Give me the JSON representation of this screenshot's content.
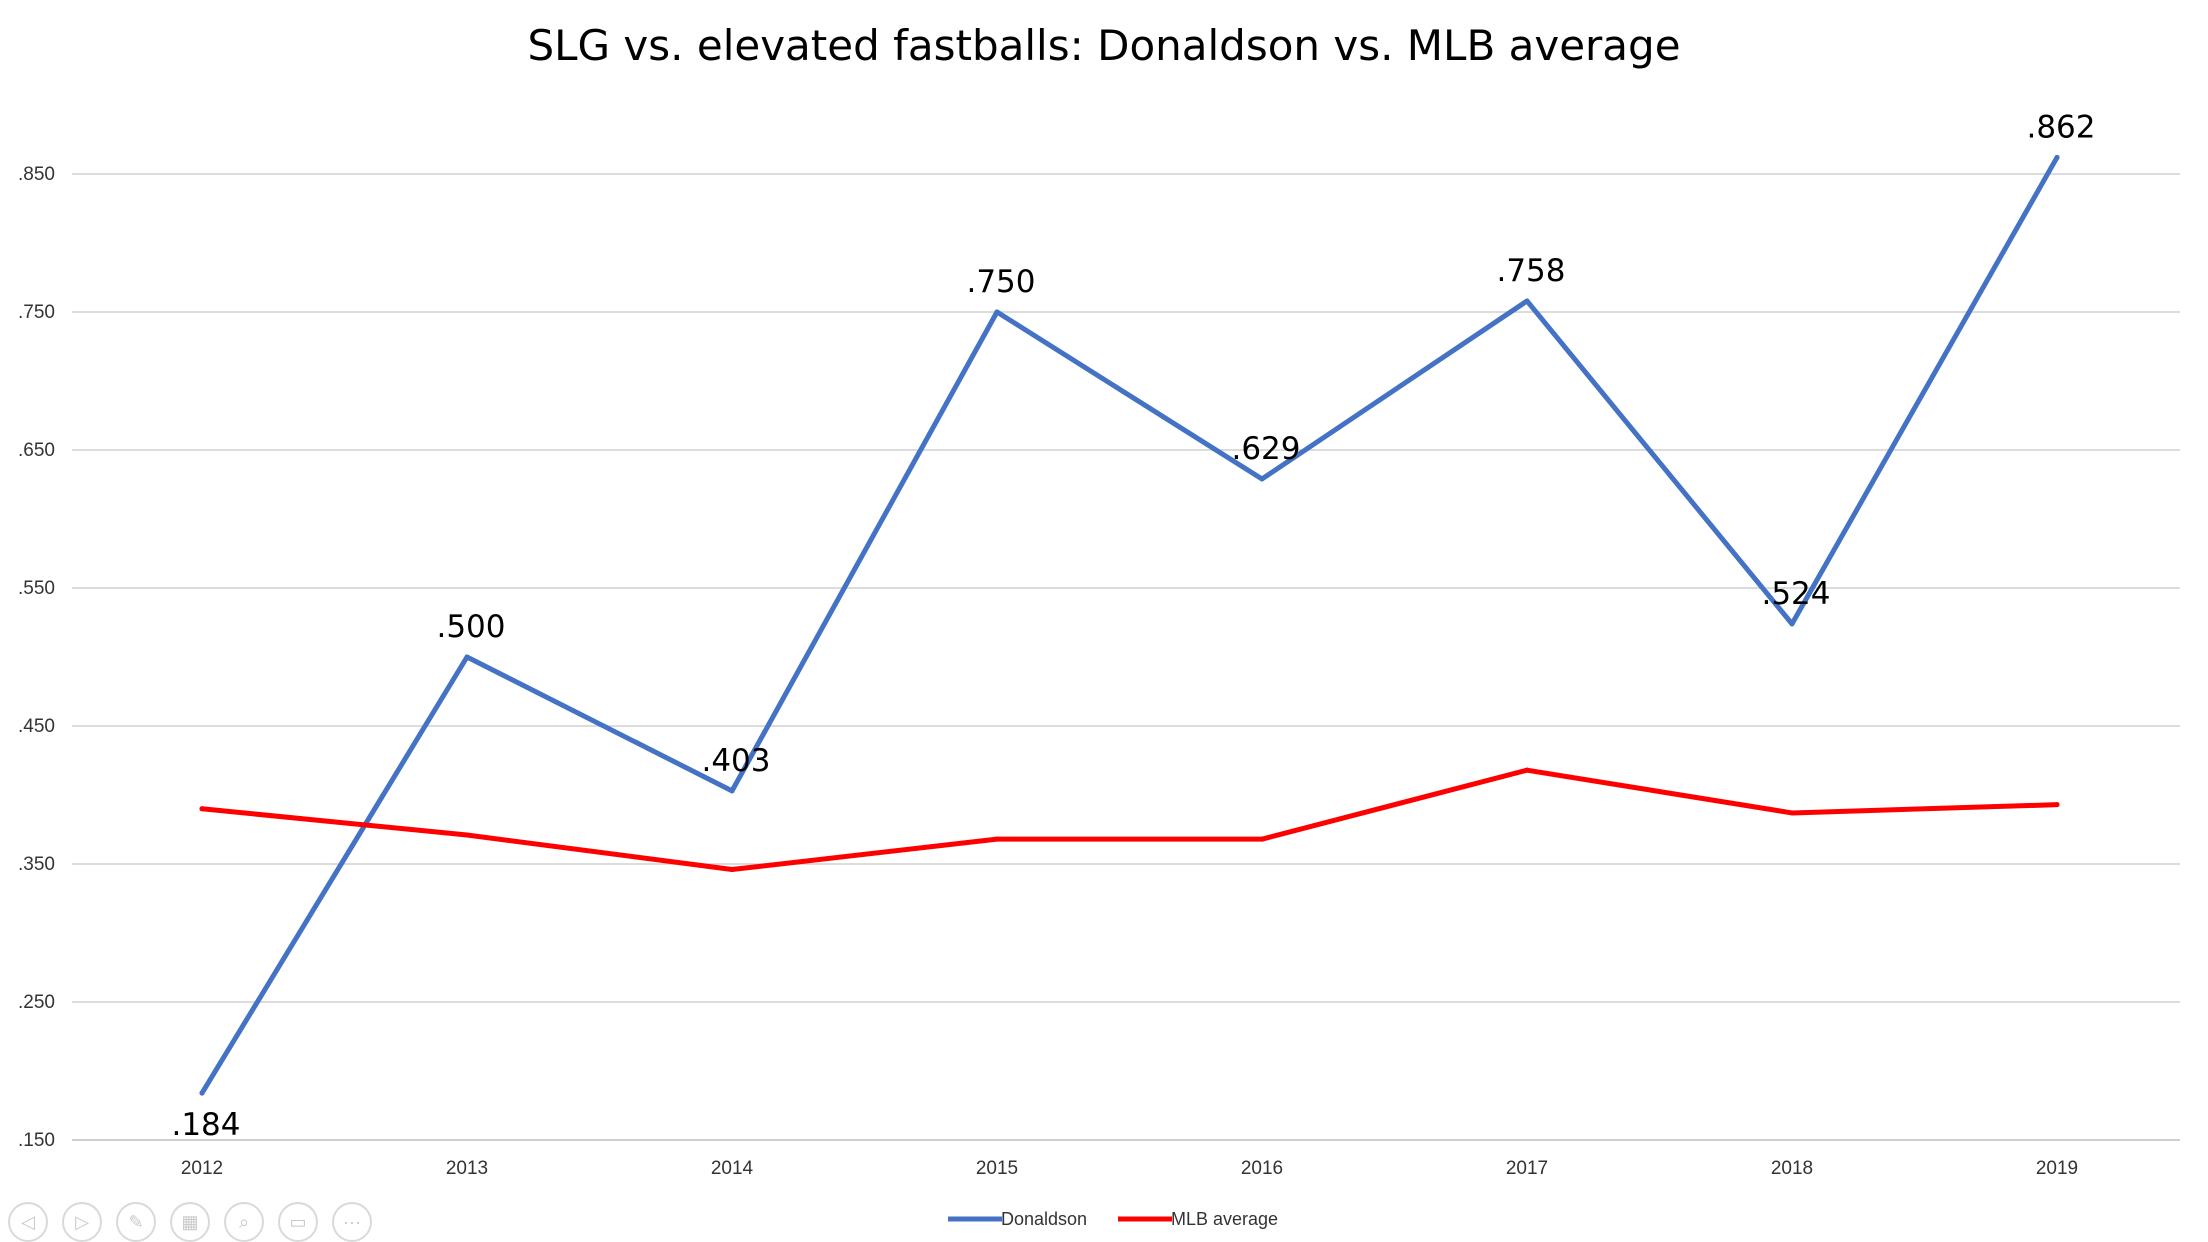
{
  "chart_data": {
    "type": "line",
    "title": "SLG vs. elevated fastballs: Donaldson vs. MLB average",
    "xlabel": "",
    "ylabel": "",
    "categories": [
      "2012",
      "2013",
      "2014",
      "2015",
      "2016",
      "2017",
      "2018",
      "2019"
    ],
    "ylim": [
      0.15,
      0.88
    ],
    "yticks": [
      0.15,
      0.25,
      0.35,
      0.45,
      0.55,
      0.65,
      0.75,
      0.85
    ],
    "ytick_labels": [
      ".150",
      ".250",
      ".350",
      ".450",
      ".550",
      ".650",
      ".750",
      ".850"
    ],
    "grid": true,
    "legend": "bottom",
    "series": [
      {
        "name": "Donaldson",
        "color": "#4472C4",
        "values": [
          0.184,
          0.5,
          0.403,
          0.75,
          0.629,
          0.758,
          0.524,
          0.862
        ],
        "labels": [
          ".184",
          ".500",
          ".403",
          ".750",
          ".629",
          ".758",
          ".524",
          ".862"
        ]
      },
      {
        "name": "MLB average",
        "color": "#FF0000",
        "values": [
          0.39,
          0.371,
          0.346,
          0.368,
          0.368,
          0.418,
          0.387,
          0.393
        ]
      }
    ]
  },
  "toolbar": [
    {
      "icon": "previous-slide-icon",
      "glyph": "◁"
    },
    {
      "icon": "next-slide-icon",
      "glyph": "▷"
    },
    {
      "icon": "pen-icon",
      "glyph": "✎"
    },
    {
      "icon": "slides-overview-icon",
      "glyph": "▦"
    },
    {
      "icon": "zoom-icon",
      "glyph": "⌕"
    },
    {
      "icon": "subtitles-icon",
      "glyph": "▭"
    },
    {
      "icon": "more-options-icon",
      "glyph": "···"
    }
  ]
}
